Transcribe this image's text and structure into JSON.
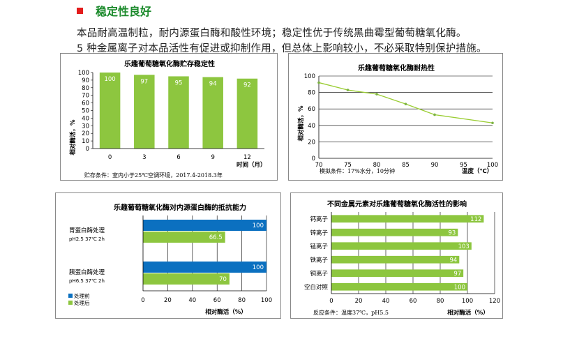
{
  "section": {
    "title": "稳定性良好",
    "para_line1": "本品耐高温制粒，耐内源蛋白酶和酸性环境；稳定性优于传统黑曲霉型葡萄糖氧化酶。",
    "para_line2": "5 种金属离子对本品活性有促进或抑制作用，但总体上影响较小，不必采取特别保护措施。"
  },
  "colors": {
    "green": "#8dc63f",
    "blue": "#0b70c0",
    "line": "#9acd32",
    "bullet": "#e31c1c",
    "title": "#1b8a2b"
  },
  "chart_data": [
    {
      "id": "storage",
      "type": "bar",
      "title": "乐趣葡萄糖氧化酶贮存稳定性",
      "categories": [
        "0",
        "3",
        "6",
        "9",
        "12"
      ],
      "values": [
        100,
        97,
        95,
        94,
        92
      ],
      "ylabel": "相对酶活，%",
      "xlabel": "时间（月）",
      "yticks": [
        "0",
        "10",
        "20",
        "30",
        "40",
        "50",
        "60",
        "70",
        "80",
        "90",
        "100"
      ],
      "ylim": [
        0,
        100
      ],
      "note": "贮存条件：室内小于25℃空调环境，2017.4-2018.3年"
    },
    {
      "id": "heat",
      "type": "line",
      "title": "乐趣葡萄糖氧化酶耐热性",
      "x": [
        70,
        75,
        80,
        85,
        90,
        100
      ],
      "y": [
        92,
        83,
        78,
        66,
        53,
        43
      ],
      "ylabel": "相对酶活，%",
      "xlabel": "温度（℃）",
      "xticks": [
        "70",
        "75",
        "80",
        "85",
        "90",
        "95",
        "100"
      ],
      "yticks": [
        "0",
        "20",
        "40",
        "60",
        "80",
        "100"
      ],
      "xlim": [
        70,
        100
      ],
      "ylim": [
        0,
        100
      ],
      "grid": true,
      "note": "模拟条件：17%水分，10分钟"
    },
    {
      "id": "protease",
      "type": "bar",
      "orientation": "horizontal",
      "title": "乐趣葡萄糖氧化酶对内源蛋白酶的抵抗能力",
      "groups": [
        {
          "label": "胃蛋白酶处理",
          "sublabel": "pH2.5 37℃ 2h",
          "before": 100,
          "after": 66.5
        },
        {
          "label": "胰蛋白酶处理",
          "sublabel": "pH6.5 37℃ 2h",
          "before": 100,
          "after": 70
        }
      ],
      "series_names": [
        "处理前",
        "处理后"
      ],
      "xlabel": "相对酶活（%）",
      "xticks": [
        "0",
        "20",
        "40",
        "60",
        "80",
        "100"
      ],
      "xlim": [
        0,
        100
      ]
    },
    {
      "id": "metal",
      "type": "bar",
      "orientation": "horizontal",
      "title": "不同金属元素对乐趣葡萄糖氧化酶活性的影响",
      "categories": [
        "钙离子",
        "锌离子",
        "锰离子",
        "铁离子",
        "铜离子",
        "空白对照"
      ],
      "values": [
        112,
        93,
        103,
        94,
        97,
        100
      ],
      "xlabel": "相对酶活（%）",
      "xticks": [
        "0",
        "20",
        "40",
        "60",
        "80",
        "100",
        "120"
      ],
      "xlim": [
        0,
        120
      ],
      "note": "反应条件：温度37℃，pH5.5"
    }
  ]
}
